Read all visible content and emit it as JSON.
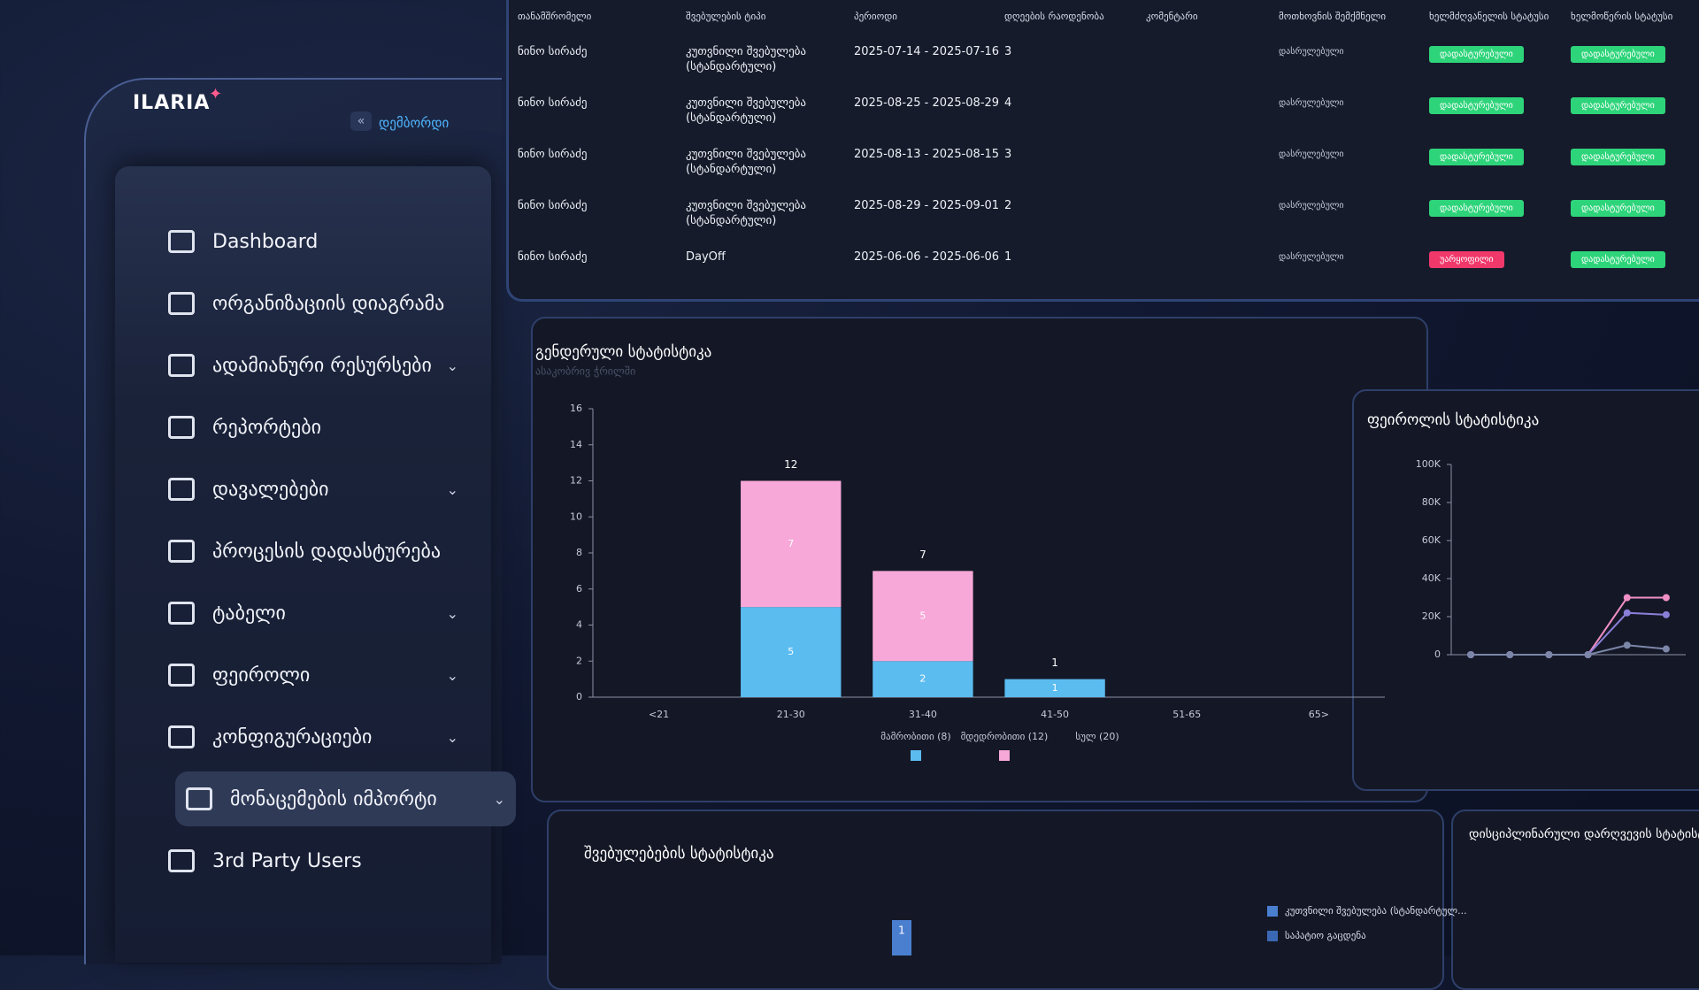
{
  "sidebar": {
    "logo": "ILARIA",
    "collapse": "დემბორდი",
    "items": [
      {
        "label": "Dashboard",
        "expandable": false
      },
      {
        "label": "ორგანიზაციის დიაგრამა",
        "expandable": false
      },
      {
        "label": "ადამიანური რესურსები",
        "expandable": true
      },
      {
        "label": "რეპორტები",
        "expandable": false
      },
      {
        "label": "დავალებები",
        "expandable": true
      },
      {
        "label": "პროცესის დადასტურება",
        "expandable": false
      },
      {
        "label": "ტაბელი",
        "expandable": true
      },
      {
        "label": "ფეიროლი",
        "expandable": true
      },
      {
        "label": "კონფიგურაციები",
        "expandable": true
      },
      {
        "label": "მონაცემების იმპორტი",
        "expandable": true,
        "active": true
      },
      {
        "label": "3rd Party Users",
        "expandable": false
      }
    ]
  },
  "table": {
    "columns": [
      "თანამშრომელი",
      "შვებულების ტიპი",
      "პერიოდი",
      "დღეების რაოდენობა",
      "კომენტარი",
      "მოთხოვნის შემქმნელი",
      "ხელმძღვანელის სტატუსი",
      "ხელმოწერის სტატუსი"
    ],
    "rows": [
      {
        "cells": [
          "ნინო სირაძე",
          "კუთვნილი შვებულება (სტანდარტული)",
          "2025-07-14 - 2025-07-16",
          3,
          "",
          "დასრულებული"
        ],
        "statuses": [
          {
            "text": "დადასტურებული",
            "color": "#2ed47a"
          },
          {
            "text": "დადასტურებული",
            "color": "#2ed47a"
          }
        ]
      },
      {
        "cells": [
          "ნინო სირაძე",
          "კუთვნილი შვებულება (სტანდარტული)",
          "2025-08-25 - 2025-08-29",
          4,
          "",
          "დასრულებული"
        ],
        "statuses": [
          {
            "text": "დადასტურებული",
            "color": "#2ed47a"
          },
          {
            "text": "დადასტურებული",
            "color": "#2ed47a"
          }
        ]
      },
      {
        "cells": [
          "ნინო სირაძე",
          "კუთვნილი შვებულება (სტანდარტული)",
          "2025-08-13 - 2025-08-15",
          3,
          "",
          "დასრულებული"
        ],
        "statuses": [
          {
            "text": "დადასტურებული",
            "color": "#2ed47a"
          },
          {
            "text": "დადასტურებული",
            "color": "#2ed47a"
          }
        ]
      },
      {
        "cells": [
          "ნინო სირაძე",
          "კუთვნილი შვებულება (სტანდარტული)",
          "2025-08-29 - 2025-09-01",
          2,
          "",
          "დასრულებული"
        ],
        "statuses": [
          {
            "text": "დადასტურებული",
            "color": "#2ed47a"
          },
          {
            "text": "დადასტურებული",
            "color": "#2ed47a"
          }
        ]
      },
      {
        "cells": [
          "ნინო სირაძე",
          "DayOff",
          "2025-06-06 - 2025-06-06",
          1,
          "",
          "დასრულებული"
        ],
        "statuses": [
          {
            "text": "უარყოფილი",
            "color": "#f0386b"
          },
          {
            "text": "დადასტურებული",
            "color": "#2ed47a"
          }
        ]
      }
    ]
  },
  "chart_data": [
    {
      "type": "stacked-bar",
      "title": "გენდერული სტატისტიკა",
      "subtitle": "ასაკობრივ ჭრილში",
      "categories": [
        "<21",
        "21-30",
        "31-40",
        "41-50",
        "51-65",
        "65>"
      ],
      "series": [
        {
          "name": "მამრობითი (8)",
          "color": "#5bbcf0",
          "values": [
            0,
            5,
            2,
            1,
            0,
            0
          ]
        },
        {
          "name": "მდედრობითი (12)",
          "color": "#f7a8d8",
          "values": [
            0,
            7,
            5,
            0,
            0,
            0
          ]
        }
      ],
      "totals": [
        null,
        12,
        7,
        1,
        null,
        null
      ],
      "total_label": "სულ (20)",
      "ylim": [
        0,
        16
      ],
      "yticks": [
        0,
        2,
        4,
        6,
        8,
        10,
        12,
        14,
        16
      ]
    },
    {
      "type": "line",
      "title": "ფეიროლის სტატისტიკა",
      "categories": [
        null,
        null,
        null,
        null,
        null,
        null
      ],
      "series": [
        {
          "color": "#f08fc6",
          "values": [
            0,
            0,
            0,
            0,
            30000,
            30000
          ]
        },
        {
          "color": "#8a7fd8",
          "values": [
            0,
            0,
            0,
            0,
            22000,
            21000
          ]
        },
        {
          "color": "#7c86a8",
          "values": [
            0,
            0,
            0,
            0,
            5000,
            3000
          ]
        }
      ],
      "ylim": [
        0,
        100000
      ],
      "yticks": [
        0,
        {
          "value": 20000,
          "label": "20K"
        },
        {
          "value": 40000,
          "label": "40K"
        },
        {
          "value": 60000,
          "label": "60K"
        },
        {
          "value": 80000,
          "label": "80K"
        },
        {
          "value": 100000,
          "label": "100K"
        }
      ]
    },
    {
      "type": "bar",
      "title": "შვებულებების სტატისტიკა",
      "series": [
        {
          "name": "კუთვნილი შვებულება (სტანდარტულ...",
          "color": "#4a7fd0",
          "values": [
            1
          ]
        },
        {
          "name": "საპატიო გაცდენა",
          "color": "#3b68b4"
        }
      ]
    },
    {
      "type": "bar",
      "title": "დისციპლინარული დარღვევის სტატისტიკა"
    }
  ]
}
